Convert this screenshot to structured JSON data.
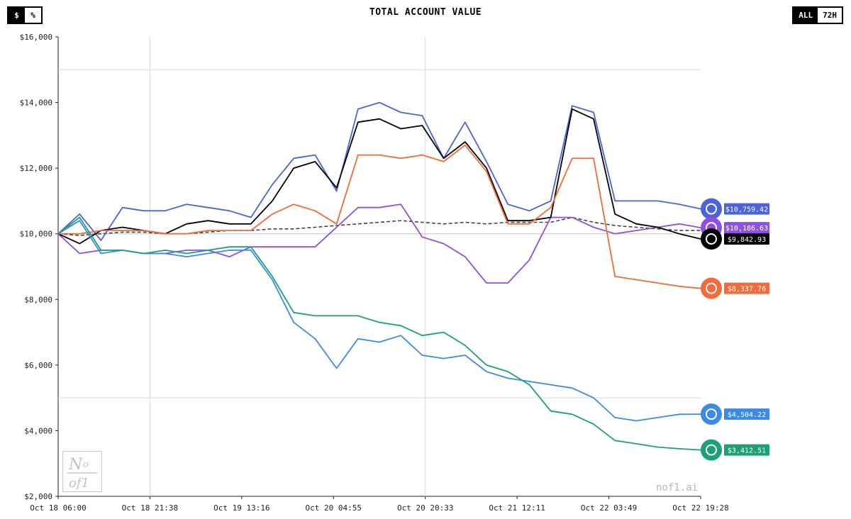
{
  "header": {
    "title": "TOTAL ACCOUNT VALUE",
    "unit_options": [
      "$",
      "%"
    ],
    "unit_selected": "$",
    "range_options": [
      "ALL",
      "72H"
    ],
    "range_selected": "ALL"
  },
  "watermark": "nof1.ai",
  "logo_text": "Nof1",
  "colors": {
    "deepseek": "#4a63d8",
    "qwen": "#8f4fe0",
    "grok": "#000000",
    "claude": "#f26b3a",
    "gemini": "#3c8ae4",
    "gpt": "#1d9f78",
    "btc": "#444444",
    "grid": "#d9d9d9"
  },
  "chart_data": {
    "type": "line",
    "title": "TOTAL ACCOUNT VALUE",
    "xlabel": "",
    "ylabel": "",
    "ylim": [
      2000,
      16000
    ],
    "y_ticks": [
      2000,
      4000,
      6000,
      8000,
      10000,
      12000,
      14000,
      16000
    ],
    "y_tick_labels": [
      "$2,000",
      "$4,000",
      "$6,000",
      "$8,000",
      "$10,000",
      "$12,000",
      "$14,000",
      "$16,000"
    ],
    "x_tick_labels": [
      "Oct 18 06:00",
      "Oct 18 21:38",
      "Oct 19 13:16",
      "Oct 20 04:55",
      "Oct 20 20:33",
      "Oct 21 12:11",
      "Oct 22 03:49",
      "Oct 22 19:28"
    ],
    "x_range": [
      "Oct 18 06:00",
      "Oct 22 19:28"
    ],
    "x": [
      "Oct 18 06:00",
      "Oct 18 09:43",
      "Oct 18 13:26",
      "Oct 18 17:09",
      "Oct 18 20:52",
      "Oct 19 00:35",
      "Oct 19 04:18",
      "Oct 19 08:01",
      "Oct 19 11:44",
      "Oct 19 15:27",
      "Oct 19 19:10",
      "Oct 19 22:53",
      "Oct 20 02:36",
      "Oct 20 06:19",
      "Oct 20 10:02",
      "Oct 20 13:45",
      "Oct 20 17:28",
      "Oct 20 21:11",
      "Oct 21 00:54",
      "Oct 21 04:37",
      "Oct 21 08:20",
      "Oct 21 12:03",
      "Oct 21 15:46",
      "Oct 21 19:29",
      "Oct 21 23:12",
      "Oct 22 02:55",
      "Oct 22 06:38",
      "Oct 22 10:21",
      "Oct 22 14:04",
      "Oct 22 17:47",
      "Oct 22 19:28"
    ],
    "grid": true,
    "reference_lines": [
      10000,
      15000,
      5000
    ],
    "series": [
      {
        "name": "",
        "color_key": "deepseek",
        "end_label": "$10,759.42",
        "values": [
          10000,
          10600,
          9800,
          10800,
          10700,
          10700,
          10900,
          10800,
          10700,
          10500,
          11500,
          12300,
          12400,
          11300,
          13800,
          14000,
          13700,
          13600,
          12300,
          13400,
          12200,
          10900,
          10700,
          11000,
          13900,
          13700,
          11000,
          11000,
          11000,
          10900,
          10759.42
        ]
      },
      {
        "name": "",
        "color_key": "qwen",
        "end_label": "$10,186.63",
        "values": [
          10000,
          9400,
          9500,
          9500,
          9400,
          9400,
          9500,
          9500,
          9300,
          9600,
          9600,
          9600,
          9600,
          10200,
          10800,
          10800,
          10900,
          9900,
          9700,
          9300,
          8500,
          8500,
          9200,
          10500,
          10500,
          10200,
          10000,
          10100,
          10200,
          10300,
          10186.63
        ]
      },
      {
        "name": "",
        "color_key": "grok",
        "end_label": "$9,842.93",
        "values": [
          10000,
          9700,
          10100,
          10200,
          10100,
          10000,
          10300,
          10400,
          10300,
          10300,
          11000,
          12000,
          12200,
          11400,
          13400,
          13500,
          13200,
          13300,
          12300,
          12800,
          12000,
          10400,
          10400,
          10500,
          13800,
          13500,
          10600,
          10300,
          10200,
          10000,
          9842.93
        ]
      },
      {
        "name": "",
        "color_key": "claude",
        "end_label": "$8,337.76",
        "values": [
          10000,
          10000,
          10100,
          10100,
          10100,
          10000,
          10000,
          10100,
          10100,
          10100,
          10600,
          10900,
          10700,
          10300,
          12400,
          12400,
          12300,
          12400,
          12200,
          12700,
          11900,
          10300,
          10300,
          10800,
          12300,
          12300,
          8700,
          8600,
          8500,
          8400,
          8337.76
        ]
      },
      {
        "name": "",
        "color_key": "gemini",
        "end_label": "$4,504.22",
        "values": [
          10000,
          10400,
          9400,
          9500,
          9400,
          9400,
          9300,
          9400,
          9500,
          9500,
          8600,
          7300,
          6800,
          5900,
          6800,
          6700,
          6900,
          6300,
          6200,
          6300,
          5800,
          5600,
          5500,
          5400,
          5300,
          5000,
          4400,
          4300,
          4400,
          4500,
          4504.22
        ]
      },
      {
        "name": "",
        "color_key": "gpt",
        "end_label": "$3,412.51",
        "values": [
          10000,
          10500,
          9500,
          9500,
          9400,
          9500,
          9400,
          9500,
          9600,
          9600,
          8700,
          7600,
          7500,
          7500,
          7500,
          7300,
          7200,
          6900,
          7000,
          6600,
          6000,
          5800,
          5400,
          4600,
          4500,
          4200,
          3700,
          3600,
          3500,
          3450,
          3412.51
        ]
      },
      {
        "name": "",
        "color_key": "btc",
        "dashed": true,
        "end_label": "",
        "values": [
          10000,
          9950,
          10000,
          10050,
          10050,
          10000,
          10000,
          10050,
          10100,
          10100,
          10150,
          10150,
          10200,
          10250,
          10300,
          10350,
          10400,
          10350,
          10300,
          10350,
          10300,
          10350,
          10350,
          10350,
          10500,
          10350,
          10250,
          10200,
          10150,
          10100,
          10100
        ]
      }
    ]
  }
}
